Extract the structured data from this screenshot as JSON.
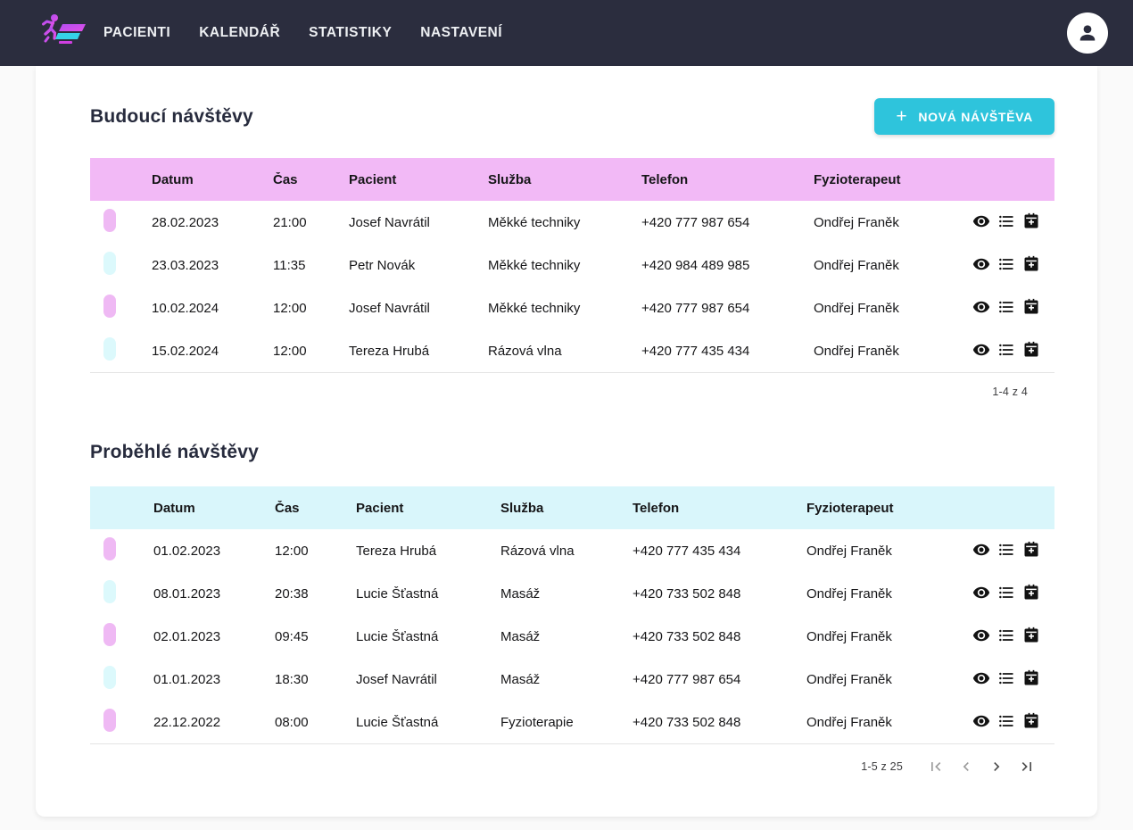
{
  "theme": {
    "nav-bg": "#2b2d3e",
    "nav-text": "#eef0f3",
    "page-bg": "#fafafa",
    "title": "#272b3d",
    "accent": "#2ec4dc",
    "head-pink": "#f2b9f6",
    "head-cyan": "#d9f6fb",
    "pill-pink": "#efb9f4",
    "pill-cyan": "#dcf9fc"
  },
  "navbar": {
    "items": [
      "PACIENTI",
      "KALENDÁŘ",
      "STATISTIKY",
      "NASTAVENÍ"
    ]
  },
  "row_actions": [
    {
      "name": "view",
      "icon": "eye-icon"
    },
    {
      "name": "detail-list",
      "icon": "list-icon"
    },
    {
      "name": "add-to-calendar",
      "icon": "calendar-plus-icon"
    }
  ],
  "sections": {
    "upcoming": {
      "title": "Budoucí návštěvy",
      "new_visit_button": "NOVÁ NÁVŠTĚVA",
      "columns": [
        "Datum",
        "Čas",
        "Pacient",
        "Služba",
        "Telefon",
        "Fyzioterapeut"
      ],
      "rows": [
        {
          "variant": "pink",
          "datum": "28.02.2023",
          "cas": "21:00",
          "pacient": "Josef Navrátil",
          "sluzba": "Měkké techniky",
          "telefon": "+420 777 987 654",
          "fyzioterapeut": "Ondřej Franěk"
        },
        {
          "variant": "cyan",
          "datum": "23.03.2023",
          "cas": "11:35",
          "pacient": "Petr Novák",
          "sluzba": "Měkké techniky",
          "telefon": "+420 984 489 985",
          "fyzioterapeut": "Ondřej Franěk"
        },
        {
          "variant": "pink",
          "datum": "10.02.2024",
          "cas": "12:00",
          "pacient": "Josef Navrátil",
          "sluzba": "Měkké techniky",
          "telefon": "+420 777 987 654",
          "fyzioterapeut": "Ondřej Franěk"
        },
        {
          "variant": "cyan",
          "datum": "15.02.2024",
          "cas": "12:00",
          "pacient": "Tereza Hrubá",
          "sluzba": "Rázová vlna",
          "telefon": "+420 777 435 434",
          "fyzioterapeut": "Ondřej Franěk"
        }
      ],
      "range_label": "1-4 z 4"
    },
    "past": {
      "title": "Proběhlé návštěvy",
      "columns": [
        "Datum",
        "Čas",
        "Pacient",
        "Služba",
        "Telefon",
        "Fyzioterapeut"
      ],
      "rows": [
        {
          "variant": "pink",
          "datum": "01.02.2023",
          "cas": "12:00",
          "pacient": "Tereza Hrubá",
          "sluzba": "Rázová vlna",
          "telefon": "+420 777 435 434",
          "fyzioterapeut": "Ondřej Franěk"
        },
        {
          "variant": "cyan",
          "datum": "08.01.2023",
          "cas": "20:38",
          "pacient": "Lucie Šťastná",
          "sluzba": "Masáž",
          "telefon": "+420 733 502 848",
          "fyzioterapeut": "Ondřej Franěk"
        },
        {
          "variant": "pink",
          "datum": "02.01.2023",
          "cas": "09:45",
          "pacient": "Lucie Šťastná",
          "sluzba": "Masáž",
          "telefon": "+420 733 502 848",
          "fyzioterapeut": "Ondřej Franěk"
        },
        {
          "variant": "cyan",
          "datum": "01.01.2023",
          "cas": "18:30",
          "pacient": "Josef Navrátil",
          "sluzba": "Masáž",
          "telefon": "+420 777 987 654",
          "fyzioterapeut": "Ondřej Franěk"
        },
        {
          "variant": "pink",
          "datum": "22.12.2022",
          "cas": "08:00",
          "pacient": "Lucie Šťastná",
          "sluzba": "Fyzioterapie",
          "telefon": "+420 733 502 848",
          "fyzioterapeut": "Ondřej Franěk"
        }
      ],
      "range_label": "1-5 z 25",
      "pagination": [
        {
          "name": "first-page",
          "enabled": false
        },
        {
          "name": "previous-page",
          "enabled": false
        },
        {
          "name": "next-page",
          "enabled": true
        },
        {
          "name": "last-page",
          "enabled": true
        }
      ]
    }
  }
}
